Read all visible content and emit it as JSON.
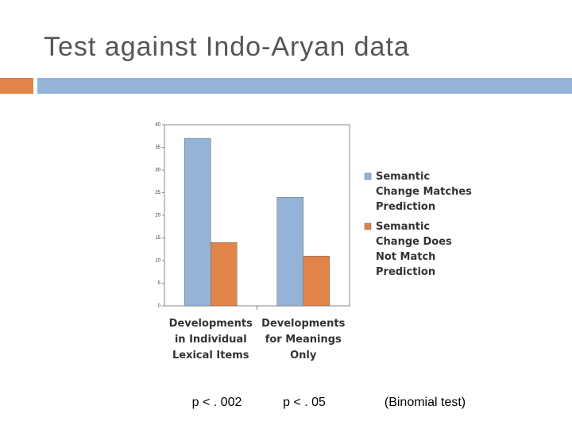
{
  "chart_data": {
    "type": "bar",
    "title": "Test against Indo-Aryan data",
    "categories": [
      "Developments in Individual Lexical Items",
      "Developments for Meanings Only"
    ],
    "series": [
      {
        "name": "Semantic Change Matches Prediction",
        "color": "#95b3d7",
        "values": [
          37,
          24
        ]
      },
      {
        "name": "Semantic Change Does Not Match Prediction",
        "color": "#e0844a",
        "values": [
          14,
          11
        ]
      }
    ],
    "ylim": [
      0,
      40
    ],
    "yticks": [
      0,
      5,
      10,
      15,
      20,
      25,
      30,
      35,
      40
    ],
    "legend": "right",
    "annotations": [
      "p < . 002",
      "p < . 05",
      "(Binomial test)"
    ]
  }
}
